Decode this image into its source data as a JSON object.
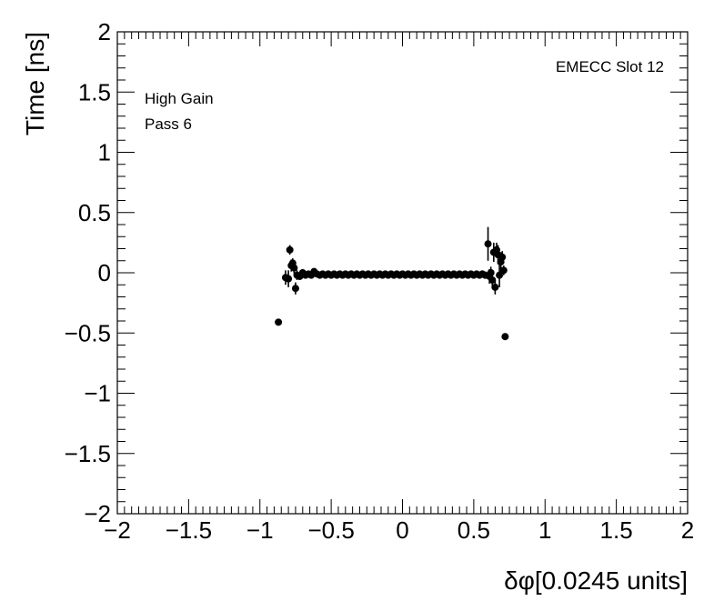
{
  "chart_data": {
    "type": "scatter",
    "xlabel": "δφ[0.0245 units]",
    "ylabel": "Time [ns]",
    "xlim": [
      -2,
      2
    ],
    "ylim": [
      -2,
      2
    ],
    "x_ticks": [
      -2,
      -1.5,
      -1,
      -0.5,
      0,
      0.5,
      1,
      1.5,
      2
    ],
    "y_ticks": [
      -2,
      -1.5,
      -1,
      -0.5,
      0,
      0.5,
      1,
      1.5,
      2
    ],
    "x_tick_labels": [
      "−2",
      "−1.5",
      "−1",
      "−0.5",
      "0",
      "0.5",
      "1",
      "1.5",
      "2"
    ],
    "y_tick_labels": [
      "−2",
      "−1.5",
      "−1",
      "−0.5",
      "0",
      "0.5",
      "1",
      "1.5",
      "2"
    ],
    "grid": false,
    "annotations": {
      "top_left_1": "High Gain",
      "top_left_2": "Pass 6",
      "top_right": "EMECC Slot 12"
    },
    "marker_color": "#000000",
    "points": [
      {
        "x": -0.87,
        "y": -0.41,
        "err": 0.0
      },
      {
        "x": -0.82,
        "y": -0.04,
        "err": 0.06
      },
      {
        "x": -0.8,
        "y": -0.05,
        "err": 0.07
      },
      {
        "x": -0.79,
        "y": 0.19,
        "err": 0.04
      },
      {
        "x": -0.78,
        "y": 0.06,
        "err": 0.05
      },
      {
        "x": -0.77,
        "y": 0.08,
        "err": 0.04
      },
      {
        "x": -0.76,
        "y": 0.04,
        "err": 0.05
      },
      {
        "x": -0.75,
        "y": -0.13,
        "err": 0.05
      },
      {
        "x": -0.74,
        "y": -0.02,
        "err": 0.04
      },
      {
        "x": -0.72,
        "y": -0.03,
        "err": 0.03
      },
      {
        "x": -0.7,
        "y": 0.0,
        "err": 0.03
      },
      {
        "x": -0.68,
        "y": -0.02,
        "err": 0.02
      },
      {
        "x": -0.66,
        "y": -0.01,
        "err": 0.02
      },
      {
        "x": -0.64,
        "y": -0.02,
        "err": 0.02
      },
      {
        "x": -0.62,
        "y": 0.01,
        "err": 0.02
      },
      {
        "x": -0.6,
        "y": -0.01,
        "err": 0.02
      },
      {
        "x": -0.58,
        "y": -0.02,
        "err": 0.02
      },
      {
        "x": -0.56,
        "y": -0.01,
        "err": 0.02
      },
      {
        "x": -0.54,
        "y": -0.02,
        "err": 0.02
      },
      {
        "x": -0.52,
        "y": -0.01,
        "err": 0.02
      },
      {
        "x": -0.5,
        "y": -0.02,
        "err": 0.02
      },
      {
        "x": -0.48,
        "y": -0.01,
        "err": 0.02
      },
      {
        "x": -0.46,
        "y": -0.02,
        "err": 0.02
      },
      {
        "x": -0.44,
        "y": -0.01,
        "err": 0.02
      },
      {
        "x": -0.42,
        "y": -0.02,
        "err": 0.02
      },
      {
        "x": -0.4,
        "y": -0.01,
        "err": 0.02
      },
      {
        "x": -0.38,
        "y": -0.02,
        "err": 0.02
      },
      {
        "x": -0.36,
        "y": -0.01,
        "err": 0.02
      },
      {
        "x": -0.34,
        "y": -0.02,
        "err": 0.02
      },
      {
        "x": -0.32,
        "y": -0.01,
        "err": 0.02
      },
      {
        "x": -0.3,
        "y": -0.02,
        "err": 0.02
      },
      {
        "x": -0.28,
        "y": -0.01,
        "err": 0.02
      },
      {
        "x": -0.26,
        "y": -0.02,
        "err": 0.02
      },
      {
        "x": -0.24,
        "y": -0.01,
        "err": 0.02
      },
      {
        "x": -0.22,
        "y": -0.02,
        "err": 0.02
      },
      {
        "x": -0.2,
        "y": -0.01,
        "err": 0.02
      },
      {
        "x": -0.18,
        "y": -0.02,
        "err": 0.02
      },
      {
        "x": -0.16,
        "y": -0.01,
        "err": 0.02
      },
      {
        "x": -0.14,
        "y": -0.02,
        "err": 0.02
      },
      {
        "x": -0.12,
        "y": -0.01,
        "err": 0.02
      },
      {
        "x": -0.1,
        "y": -0.02,
        "err": 0.02
      },
      {
        "x": -0.08,
        "y": -0.01,
        "err": 0.02
      },
      {
        "x": -0.06,
        "y": -0.02,
        "err": 0.02
      },
      {
        "x": -0.04,
        "y": -0.01,
        "err": 0.02
      },
      {
        "x": -0.02,
        "y": -0.02,
        "err": 0.02
      },
      {
        "x": 0.0,
        "y": -0.01,
        "err": 0.02
      },
      {
        "x": 0.02,
        "y": -0.02,
        "err": 0.02
      },
      {
        "x": 0.04,
        "y": -0.01,
        "err": 0.02
      },
      {
        "x": 0.06,
        "y": -0.02,
        "err": 0.02
      },
      {
        "x": 0.08,
        "y": -0.01,
        "err": 0.02
      },
      {
        "x": 0.1,
        "y": -0.02,
        "err": 0.02
      },
      {
        "x": 0.12,
        "y": -0.01,
        "err": 0.02
      },
      {
        "x": 0.14,
        "y": -0.02,
        "err": 0.02
      },
      {
        "x": 0.16,
        "y": -0.01,
        "err": 0.02
      },
      {
        "x": 0.18,
        "y": -0.02,
        "err": 0.02
      },
      {
        "x": 0.2,
        "y": -0.01,
        "err": 0.02
      },
      {
        "x": 0.22,
        "y": -0.02,
        "err": 0.02
      },
      {
        "x": 0.24,
        "y": -0.01,
        "err": 0.02
      },
      {
        "x": 0.26,
        "y": -0.02,
        "err": 0.02
      },
      {
        "x": 0.28,
        "y": -0.01,
        "err": 0.02
      },
      {
        "x": 0.3,
        "y": -0.02,
        "err": 0.02
      },
      {
        "x": 0.32,
        "y": -0.01,
        "err": 0.02
      },
      {
        "x": 0.34,
        "y": -0.02,
        "err": 0.02
      },
      {
        "x": 0.36,
        "y": -0.01,
        "err": 0.02
      },
      {
        "x": 0.38,
        "y": -0.02,
        "err": 0.02
      },
      {
        "x": 0.4,
        "y": -0.01,
        "err": 0.02
      },
      {
        "x": 0.42,
        "y": -0.02,
        "err": 0.02
      },
      {
        "x": 0.44,
        "y": -0.01,
        "err": 0.02
      },
      {
        "x": 0.46,
        "y": -0.02,
        "err": 0.02
      },
      {
        "x": 0.48,
        "y": -0.01,
        "err": 0.02
      },
      {
        "x": 0.5,
        "y": -0.02,
        "err": 0.02
      },
      {
        "x": 0.52,
        "y": -0.01,
        "err": 0.02
      },
      {
        "x": 0.54,
        "y": -0.02,
        "err": 0.02
      },
      {
        "x": 0.56,
        "y": -0.01,
        "err": 0.03
      },
      {
        "x": 0.58,
        "y": -0.02,
        "err": 0.03
      },
      {
        "x": 0.6,
        "y": 0.24,
        "err": 0.14
      },
      {
        "x": 0.61,
        "y": -0.03,
        "err": 0.06
      },
      {
        "x": 0.62,
        "y": 0.0,
        "err": 0.05
      },
      {
        "x": 0.63,
        "y": -0.06,
        "err": 0.07
      },
      {
        "x": 0.64,
        "y": 0.17,
        "err": 0.08
      },
      {
        "x": 0.65,
        "y": -0.12,
        "err": 0.06
      },
      {
        "x": 0.66,
        "y": 0.19,
        "err": 0.06
      },
      {
        "x": 0.67,
        "y": 0.15,
        "err": 0.08
      },
      {
        "x": 0.68,
        "y": -0.02,
        "err": 0.1
      },
      {
        "x": 0.69,
        "y": 0.09,
        "err": 0.08
      },
      {
        "x": 0.7,
        "y": 0.13,
        "err": 0.05
      },
      {
        "x": 0.71,
        "y": 0.02,
        "err": 0.04
      },
      {
        "x": 0.72,
        "y": -0.53,
        "err": 0.0
      }
    ]
  }
}
